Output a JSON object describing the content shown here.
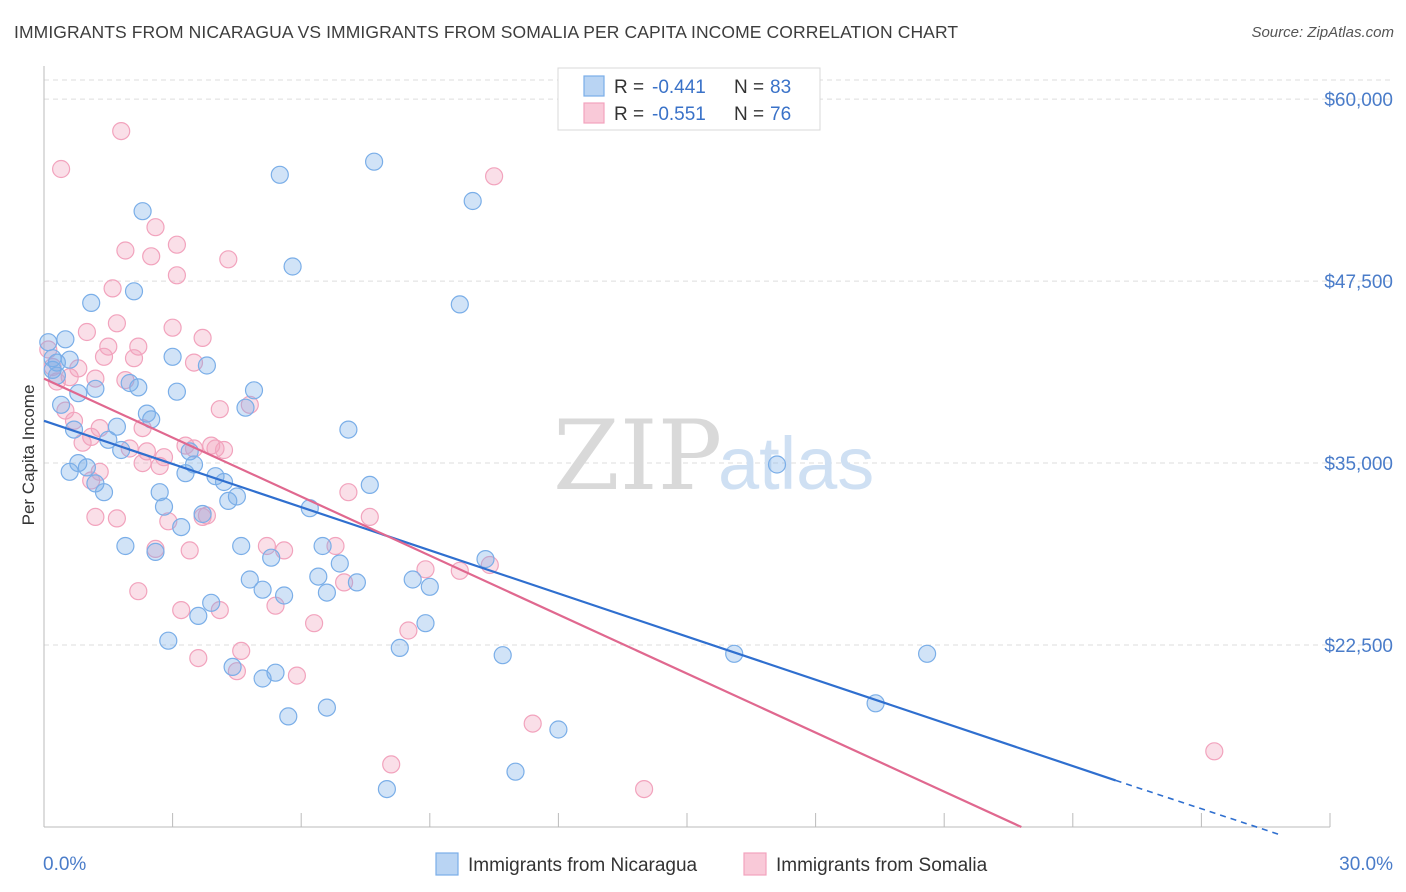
{
  "title": "IMMIGRANTS FROM NICARAGUA VS IMMIGRANTS FROM SOMALIA PER CAPITA INCOME CORRELATION CHART",
  "source": "Source: ZipAtlas.com",
  "watermark": {
    "zip": "ZIP",
    "atlas": "atlas"
  },
  "legend": {
    "rows": [
      {
        "r_label": "R = ",
        "r_value": "-0.441",
        "n_label": "N = ",
        "n_value": "83"
      },
      {
        "r_label": "R = ",
        "r_value": "-0.551",
        "n_label": "N = ",
        "n_value": "76"
      }
    ]
  },
  "chart_data": {
    "type": "scatter",
    "title": "IMMIGRANTS FROM NICARAGUA VS IMMIGRANTS FROM SOMALIA PER CAPITA INCOME CORRELATION CHART",
    "xlabel": "",
    "ylabel": "Per Capita Income",
    "xlim": [
      0,
      30
    ],
    "ylim": [
      10000,
      62000
    ],
    "x_tick_labels": [
      "0.0%",
      "30.0%"
    ],
    "y_ticks": [
      22500,
      35000,
      47500,
      60000
    ],
    "y_tick_labels": [
      "$22,500",
      "$35,000",
      "$47,500",
      "$60,000"
    ],
    "grid": "horizontal dashed",
    "legend_position": "top-center",
    "colors": {
      "nicaragua": "#7aaee8",
      "somalia": "#f2a3bd",
      "nicaragua_line": "#2f6fcf",
      "somalia_line": "#e0688f"
    },
    "series": [
      {
        "name": "Immigrants from Nicaragua",
        "color": "#7aaee8",
        "trend": {
          "x": [
            0,
            25.0
          ],
          "y": [
            37900,
            13200
          ],
          "dashed_to": [
            28.8,
            9500
          ]
        },
        "points": [
          [
            0.1,
            43300
          ],
          [
            0.2,
            42200
          ],
          [
            0.2,
            41400
          ],
          [
            0.3,
            41900
          ],
          [
            0.3,
            41000
          ],
          [
            0.4,
            39000
          ],
          [
            0.5,
            43500
          ],
          [
            0.6,
            42100
          ],
          [
            0.6,
            34400
          ],
          [
            0.7,
            37300
          ],
          [
            0.8,
            35000
          ],
          [
            0.8,
            39800
          ],
          [
            1.0,
            34700
          ],
          [
            1.1,
            46000
          ],
          [
            1.2,
            40100
          ],
          [
            1.2,
            33600
          ],
          [
            1.4,
            33000
          ],
          [
            1.5,
            36600
          ],
          [
            1.7,
            37500
          ],
          [
            1.8,
            35900
          ],
          [
            1.9,
            29300
          ],
          [
            2.0,
            40500
          ],
          [
            2.1,
            46800
          ],
          [
            2.2,
            40200
          ],
          [
            2.3,
            52300
          ],
          [
            2.4,
            38400
          ],
          [
            2.5,
            38000
          ],
          [
            2.6,
            28900
          ],
          [
            2.7,
            33000
          ],
          [
            2.8,
            32000
          ],
          [
            2.9,
            22800
          ],
          [
            3.0,
            42300
          ],
          [
            3.1,
            39900
          ],
          [
            3.2,
            30600
          ],
          [
            3.3,
            34300
          ],
          [
            3.4,
            35800
          ],
          [
            3.5,
            34900
          ],
          [
            3.6,
            24500
          ],
          [
            3.7,
            31500
          ],
          [
            3.8,
            41700
          ],
          [
            3.9,
            25400
          ],
          [
            4.0,
            34100
          ],
          [
            4.2,
            33700
          ],
          [
            4.3,
            32400
          ],
          [
            4.4,
            21000
          ],
          [
            4.5,
            32700
          ],
          [
            4.6,
            29300
          ],
          [
            4.7,
            38800
          ],
          [
            4.8,
            27000
          ],
          [
            4.9,
            40000
          ],
          [
            5.1,
            26300
          ],
          [
            5.1,
            20200
          ],
          [
            5.3,
            28500
          ],
          [
            5.4,
            20600
          ],
          [
            5.6,
            25900
          ],
          [
            5.7,
            17600
          ],
          [
            5.5,
            54800
          ],
          [
            5.8,
            48500
          ],
          [
            6.2,
            31900
          ],
          [
            6.4,
            27200
          ],
          [
            6.5,
            29300
          ],
          [
            6.6,
            26100
          ],
          [
            6.6,
            18200
          ],
          [
            6.9,
            28100
          ],
          [
            7.1,
            37300
          ],
          [
            7.3,
            26800
          ],
          [
            7.6,
            33500
          ],
          [
            7.7,
            55700
          ],
          [
            8.0,
            12600
          ],
          [
            8.3,
            22300
          ],
          [
            8.6,
            27000
          ],
          [
            8.9,
            24000
          ],
          [
            9.0,
            26500
          ],
          [
            9.7,
            45900
          ],
          [
            10.0,
            53000
          ],
          [
            10.3,
            28400
          ],
          [
            10.7,
            21800
          ],
          [
            11.0,
            13800
          ],
          [
            12.0,
            16700
          ],
          [
            16.1,
            21900
          ],
          [
            17.1,
            34900
          ],
          [
            19.4,
            18500
          ],
          [
            20.6,
            21900
          ]
        ]
      },
      {
        "name": "Immigrants from Somalia",
        "color": "#f2a3bd",
        "trend": {
          "x": [
            0,
            22.8
          ],
          "y": [
            40800,
            10000
          ]
        },
        "points": [
          [
            0.1,
            42800
          ],
          [
            0.2,
            41600
          ],
          [
            0.3,
            40600
          ],
          [
            0.4,
            55200
          ],
          [
            0.5,
            38600
          ],
          [
            0.6,
            40900
          ],
          [
            0.7,
            37900
          ],
          [
            0.8,
            41500
          ],
          [
            0.9,
            36400
          ],
          [
            1.0,
            44000
          ],
          [
            1.1,
            36800
          ],
          [
            1.1,
            33800
          ],
          [
            1.2,
            40800
          ],
          [
            1.2,
            31300
          ],
          [
            1.3,
            34400
          ],
          [
            1.3,
            37400
          ],
          [
            1.4,
            42300
          ],
          [
            1.5,
            43000
          ],
          [
            1.6,
            47000
          ],
          [
            1.7,
            44600
          ],
          [
            1.7,
            31200
          ],
          [
            1.8,
            57800
          ],
          [
            1.9,
            40700
          ],
          [
            1.9,
            49600
          ],
          [
            2.0,
            36000
          ],
          [
            2.1,
            42200
          ],
          [
            2.2,
            43000
          ],
          [
            2.2,
            26200
          ],
          [
            2.3,
            35000
          ],
          [
            2.3,
            37400
          ],
          [
            2.4,
            35800
          ],
          [
            2.5,
            49200
          ],
          [
            2.6,
            51200
          ],
          [
            2.6,
            29100
          ],
          [
            2.7,
            34800
          ],
          [
            2.8,
            35400
          ],
          [
            2.9,
            31000
          ],
          [
            3.0,
            44300
          ],
          [
            3.1,
            50000
          ],
          [
            3.1,
            47900
          ],
          [
            3.2,
            24900
          ],
          [
            3.3,
            36200
          ],
          [
            3.4,
            29000
          ],
          [
            3.5,
            41900
          ],
          [
            3.5,
            36000
          ],
          [
            3.6,
            21600
          ],
          [
            3.7,
            31300
          ],
          [
            3.7,
            43600
          ],
          [
            3.8,
            31400
          ],
          [
            3.9,
            36200
          ],
          [
            4.0,
            36000
          ],
          [
            4.1,
            24900
          ],
          [
            4.1,
            38700
          ],
          [
            4.2,
            35900
          ],
          [
            4.3,
            49000
          ],
          [
            4.5,
            20700
          ],
          [
            4.6,
            22100
          ],
          [
            4.8,
            39000
          ],
          [
            5.2,
            29300
          ],
          [
            5.4,
            25200
          ],
          [
            5.6,
            29000
          ],
          [
            5.9,
            20400
          ],
          [
            6.3,
            24000
          ],
          [
            6.8,
            29300
          ],
          [
            7.0,
            26800
          ],
          [
            7.1,
            33000
          ],
          [
            7.6,
            31300
          ],
          [
            8.1,
            14300
          ],
          [
            8.5,
            23500
          ],
          [
            8.9,
            27700
          ],
          [
            9.7,
            27600
          ],
          [
            10.4,
            28000
          ],
          [
            10.5,
            54700
          ],
          [
            11.4,
            17100
          ],
          [
            14.0,
            12600
          ],
          [
            27.3,
            15200
          ]
        ]
      }
    ]
  }
}
